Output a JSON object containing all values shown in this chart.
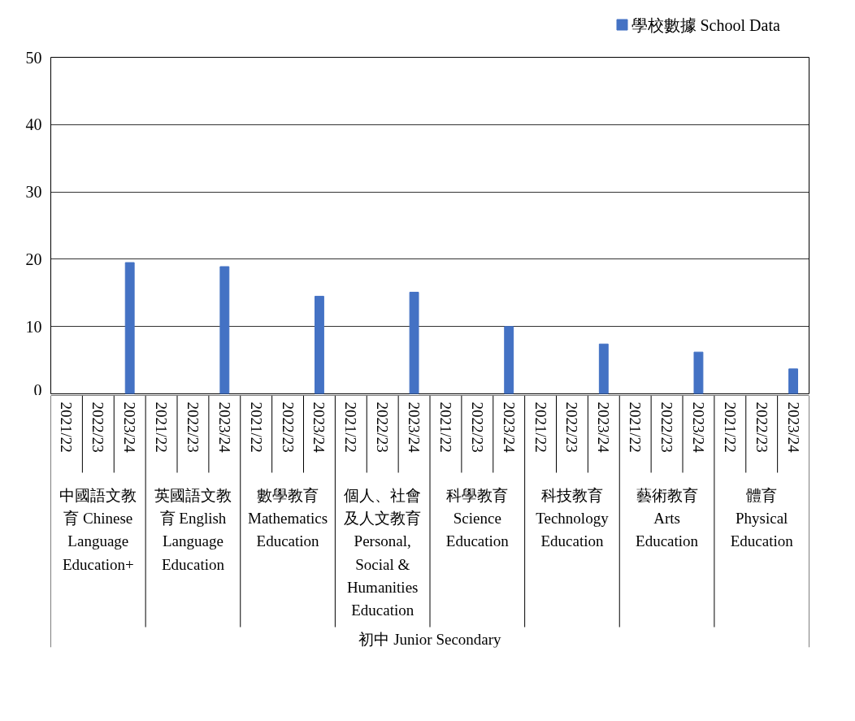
{
  "chart_data": {
    "type": "bar",
    "categories": [
      "2021/22",
      "2022/23",
      "2023/24",
      "2021/22",
      "2022/23",
      "2023/24",
      "2021/22",
      "2022/23",
      "2023/24",
      "2021/22",
      "2022/23",
      "2023/24",
      "2021/22",
      "2022/23",
      "2023/24",
      "2021/22",
      "2022/23",
      "2023/24",
      "2021/22",
      "2022/23",
      "2023/24",
      "2021/22",
      "2022/23",
      "2023/24"
    ],
    "series": [
      {
        "name": "學校數據 School Data",
        "color": "#4472c4",
        "values": [
          null,
          null,
          19.5,
          null,
          null,
          18.9,
          null,
          null,
          14.5,
          null,
          null,
          15.1,
          null,
          null,
          10.0,
          null,
          null,
          7.4,
          null,
          null,
          6.2,
          null,
          null,
          3.7
        ]
      }
    ],
    "ylim": [
      0,
      50
    ],
    "yticks": [
      0,
      10,
      20,
      30,
      40,
      50
    ],
    "grid": "y",
    "legend": "top right",
    "annotations": [
      "中國語文教育 Chinese Language Education+",
      "英國語文教育 English Language Education",
      "數學教育 Mathematics Education",
      "個人、社會及人文教育 Personal, Social & Humanities Education",
      "科學教育 Science Education",
      "科技教育 Technology Education",
      "藝術教育 Arts Education",
      "體育 Physical Education",
      "初中 Junior Secondary"
    ]
  }
}
